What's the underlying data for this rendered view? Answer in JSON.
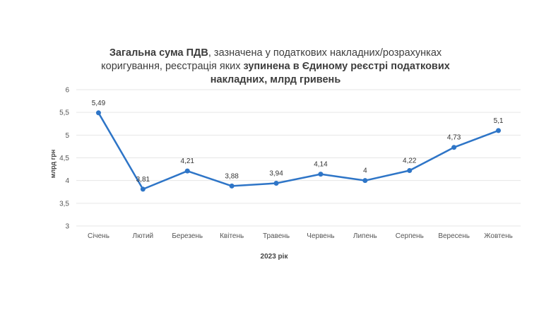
{
  "chart_data": {
    "type": "line",
    "title_parts": [
      {
        "text": "Загальна сума ПДВ",
        "bold": true
      },
      {
        "text": ", зазначена у податкових накладних/розрахунках коригування, реєстрація яких ",
        "bold": false
      },
      {
        "text": "зупинена в Єдиному реєстрі податкових накладних, млрд гривень",
        "bold": true
      }
    ],
    "xlabel": "2023 рік",
    "ylabel": "млрд грн",
    "categories": [
      "Січень",
      "Лютий",
      "Березень",
      "Квітень",
      "Травень",
      "Червень",
      "Липень",
      "Серпень",
      "Вересень",
      "Жовтень"
    ],
    "values": [
      5.49,
      3.81,
      4.21,
      3.88,
      3.94,
      4.14,
      4.0,
      4.22,
      4.73,
      5.1
    ],
    "value_labels": [
      "5,49",
      "3,81",
      "4,21",
      "3,88",
      "3,94",
      "4,14",
      "4",
      "4,22",
      "4,73",
      "5,1"
    ],
    "ylim": [
      3,
      6
    ],
    "yticks": [
      3,
      3.5,
      4,
      4.5,
      5,
      5.5,
      6
    ],
    "ytick_labels": [
      "3",
      "3,5",
      "4",
      "4,5",
      "5",
      "5,5",
      "6"
    ],
    "grid": true,
    "line_color": "#2e75c7",
    "grid_color": "#e6e6e6"
  }
}
